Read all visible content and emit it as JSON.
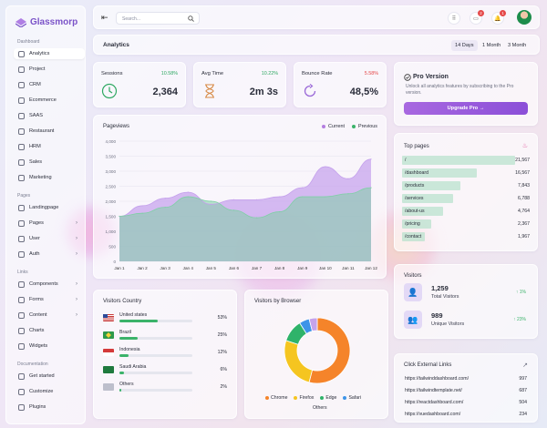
{
  "brand": {
    "name": "Glassmorp",
    "accent": "#8b4fd8"
  },
  "sidebar": {
    "sections": [
      {
        "title": "Dashboard",
        "items": [
          {
            "label": "Analytics",
            "icon": "chart-icon",
            "active": true
          },
          {
            "label": "Project",
            "icon": "project-icon"
          },
          {
            "label": "CRM",
            "icon": "crm-icon"
          },
          {
            "label": "Ecommerce",
            "icon": "cart-icon"
          },
          {
            "label": "SAAS",
            "icon": "saas-icon"
          },
          {
            "label": "Restaurant",
            "icon": "restaurant-icon"
          },
          {
            "label": "HRM",
            "icon": "hrm-icon"
          },
          {
            "label": "Sales",
            "icon": "sales-icon"
          },
          {
            "label": "Marketing",
            "icon": "marketing-icon"
          }
        ]
      },
      {
        "title": "Pages",
        "items": [
          {
            "label": "Landingpage",
            "icon": "landing-icon"
          },
          {
            "label": "Pages",
            "icon": "pages-icon",
            "chevron": true
          },
          {
            "label": "User",
            "icon": "user-icon",
            "chevron": true
          },
          {
            "label": "Auth",
            "icon": "auth-icon",
            "chevron": true
          }
        ]
      },
      {
        "title": "Links",
        "items": [
          {
            "label": "Components",
            "icon": "components-icon",
            "chevron": true
          },
          {
            "label": "Forms",
            "icon": "forms-icon",
            "chevron": true
          },
          {
            "label": "Content",
            "icon": "content-icon",
            "chevron": true
          },
          {
            "label": "Charts",
            "icon": "charts-icon"
          },
          {
            "label": "Widgets",
            "icon": "widgets-icon"
          }
        ]
      },
      {
        "title": "Documentation",
        "items": [
          {
            "label": "Get started",
            "icon": "doc-icon"
          },
          {
            "label": "Customize",
            "icon": "customize-icon"
          },
          {
            "label": "Plugins",
            "icon": "plugins-icon"
          }
        ]
      }
    ]
  },
  "header": {
    "search_placeholder": "Search...",
    "notifications": [
      {
        "icon": "grid-icon"
      },
      {
        "icon": "message-icon",
        "badge": "2"
      },
      {
        "icon": "bell-icon",
        "badge": "1"
      }
    ]
  },
  "titlebar": {
    "title": "Analytics",
    "tabs": [
      {
        "label": "14 Days",
        "active": true
      },
      {
        "label": "1 Month"
      },
      {
        "label": "3 Month"
      }
    ]
  },
  "stats": [
    {
      "label": "Sessions",
      "delta": "10.58%",
      "delta_color": "#2fa862",
      "value": "2,364"
    },
    {
      "label": "Avg Time",
      "delta": "10.22%",
      "delta_color": "#2fa862",
      "value": "2m 3s"
    },
    {
      "label": "Bounce Rate",
      "delta": "5.58%",
      "delta_color": "#e54848",
      "value": "48,5%"
    }
  ],
  "pageviews": {
    "title": "Pageviews",
    "legend": [
      {
        "label": "Current",
        "color": "#b47ee0"
      },
      {
        "label": "Previous",
        "color": "#3bb36a"
      }
    ]
  },
  "chart_data": {
    "type": "area",
    "title": "Pageviews",
    "x": [
      "Jan 1",
      "Jan 2",
      "Jan 3",
      "Jan 4",
      "Jan 5",
      "Jan 6",
      "Jan 7",
      "Jan 8",
      "Jan 9",
      "Jan 10",
      "Jan 11",
      "Jan 12"
    ],
    "yticks": [
      "4,000",
      "3,500",
      "3,000",
      "2,500",
      "2,000",
      "1,500",
      "1,000",
      "500",
      "0"
    ],
    "ylim": [
      0,
      4000
    ],
    "series": [
      {
        "name": "Current",
        "color": "#c4a0ec",
        "values": [
          1500,
          1850,
          2100,
          2300,
          1900,
          2050,
          2050,
          2150,
          2450,
          3150,
          2750,
          3400
        ]
      },
      {
        "name": "Previous",
        "color": "#7fd0a6",
        "values": [
          1500,
          1600,
          1800,
          2150,
          2000,
          1700,
          1450,
          1650,
          2150,
          2150,
          2250,
          2450
        ]
      }
    ]
  },
  "pro": {
    "title": "Pro Version",
    "text": "Unlock all analytics features by subscribing to the Pro version.",
    "button": "Upgrade Pro →"
  },
  "top_pages": {
    "title": "Top pages",
    "rows": [
      {
        "page": "/",
        "value": "21,567",
        "pct": 1.0
      },
      {
        "page": "/dashboard",
        "value": "16,567",
        "pct": 0.66
      },
      {
        "page": "/products",
        "value": "7,843",
        "pct": 0.52
      },
      {
        "page": "/services",
        "value": "6,788",
        "pct": 0.45
      },
      {
        "page": "/about-us",
        "value": "4,764",
        "pct": 0.36
      },
      {
        "page": "/pricing",
        "value": "2,367",
        "pct": 0.26
      },
      {
        "page": "/contact",
        "value": "1,967",
        "pct": 0.2
      }
    ]
  },
  "visitors_country": {
    "title": "Visitors Country",
    "rows": [
      {
        "name": "United states",
        "pct": "53%",
        "value": 0.53,
        "flag": "us"
      },
      {
        "name": "Brazil",
        "pct": "25%",
        "value": 0.25,
        "flag": "br"
      },
      {
        "name": "Indonesia",
        "pct": "12%",
        "value": 0.12,
        "flag": "id"
      },
      {
        "name": "Saudi Arabia",
        "pct": "6%",
        "value": 0.06,
        "flag": "sa"
      },
      {
        "name": "Others",
        "pct": "2%",
        "value": 0.02,
        "flag": "other"
      }
    ]
  },
  "visitors_browser": {
    "title": "Visitors by Browser",
    "slices": [
      {
        "name": "Chrome",
        "value": 0.54,
        "color": "#f5842a"
      },
      {
        "name": "Firefox",
        "value": 0.26,
        "color": "#f5c520"
      },
      {
        "name": "Edge",
        "value": 0.11,
        "color": "#2fb36a"
      },
      {
        "name": "Safari",
        "value": 0.05,
        "color": "#3d94e8"
      },
      {
        "name": "Others",
        "value": 0.04,
        "color": "#c6a3ec"
      }
    ]
  },
  "visitors": {
    "title": "Visitors",
    "rows": [
      {
        "value": "1,259",
        "label": "Total Visitors",
        "delta": "↑ 1%"
      },
      {
        "value": "989",
        "label": "Unique Visitors",
        "delta": "↑ 23%"
      }
    ]
  },
  "external_links": {
    "title": "Click External Links",
    "rows": [
      {
        "url": "https://tailwinddashboard.com/",
        "value": "997"
      },
      {
        "url": "https://tailwindtemplate.net/",
        "value": "687"
      },
      {
        "url": "https://reactdashboard.com/",
        "value": "504"
      },
      {
        "url": "https://vuedashboard.com/",
        "value": "234"
      }
    ]
  }
}
